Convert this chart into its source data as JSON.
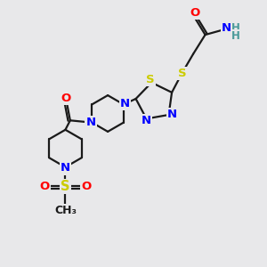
{
  "background_color": "#e8e8ea",
  "bond_color": "#1a1a1a",
  "atom_colors": {
    "N": "#0000ff",
    "O": "#ff0000",
    "S": "#cccc00",
    "H": "#4a9a9a",
    "C": "#1a1a1a"
  },
  "figsize": [
    3.0,
    3.0
  ],
  "dpi": 100,
  "xlim": [
    0,
    10
  ],
  "ylim": [
    0,
    10
  ]
}
